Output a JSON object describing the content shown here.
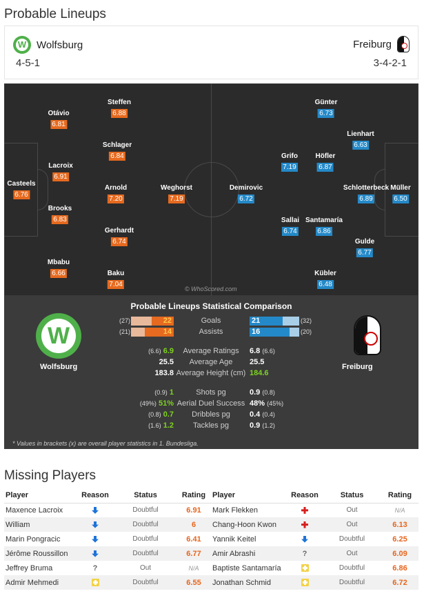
{
  "lineups": {
    "title": "Probable Lineups",
    "home": {
      "name": "Wolfsburg",
      "formation": "4-5-1",
      "logo_glyph": "W"
    },
    "away": {
      "name": "Freiburg",
      "formation": "3-4-2-1"
    },
    "watermark": "© WhoScored.com",
    "home_players": [
      {
        "name": "Casteels",
        "rating": "6.76"
      },
      {
        "name": "Otávio",
        "rating": "6.81"
      },
      {
        "name": "Lacroix",
        "rating": "6.91"
      },
      {
        "name": "Brooks",
        "rating": "6.83"
      },
      {
        "name": "Mbabu",
        "rating": "6.66"
      },
      {
        "name": "Steffen",
        "rating": "6.88"
      },
      {
        "name": "Schlager",
        "rating": "6.84"
      },
      {
        "name": "Arnold",
        "rating": "7.20"
      },
      {
        "name": "Gerhardt",
        "rating": "6.74"
      },
      {
        "name": "Baku",
        "rating": "7.04"
      },
      {
        "name": "Weghorst",
        "rating": "7.19"
      }
    ],
    "away_players": [
      {
        "name": "Demirovic",
        "rating": "6.72"
      },
      {
        "name": "Grifo",
        "rating": "7.19"
      },
      {
        "name": "Sallai",
        "rating": "6.74"
      },
      {
        "name": "Günter",
        "rating": "6.73"
      },
      {
        "name": "Höfler",
        "rating": "6.87"
      },
      {
        "name": "Santamaría",
        "rating": "6.86"
      },
      {
        "name": "Kübler",
        "rating": "6.48"
      },
      {
        "name": "Lienhart",
        "rating": "6.63"
      },
      {
        "name": "Schlotterbeck",
        "rating": "6.89"
      },
      {
        "name": "Gulde",
        "rating": "6.77"
      },
      {
        "name": "Müller",
        "rating": "6.50"
      }
    ]
  },
  "comparison": {
    "title": "Probable Lineups Statistical Comparison",
    "home_label": "Wolfsburg",
    "away_label": "Freiburg",
    "bar_stats": [
      {
        "label": "Goals",
        "home": "22",
        "home_overall": "(27)",
        "away": "21",
        "away_overall": "(32)",
        "home_frac": 0.51,
        "away_frac": 0.66
      },
      {
        "label": "Assists",
        "home": "14",
        "home_overall": "(21)",
        "away": "16",
        "away_overall": "(20)",
        "home_frac": 0.67,
        "away_frac": 0.8
      }
    ],
    "stats": [
      {
        "label": "Average Ratings",
        "home": "6.9",
        "home_overall": "(6.6)",
        "away": "6.8",
        "away_overall": "(6.6)",
        "winner": "home"
      },
      {
        "label": "Average Age",
        "home": "25.5",
        "home_overall": "",
        "away": "25.5",
        "away_overall": "",
        "winner": ""
      },
      {
        "label": "Average Height (cm)",
        "home": "183.8",
        "home_overall": "",
        "away": "184.6",
        "away_overall": "",
        "winner": "away"
      },
      {
        "label": "Shots pg",
        "home": "1",
        "home_overall": "(0.9)",
        "away": "0.9",
        "away_overall": "(0.8)",
        "winner": "home"
      },
      {
        "label": "Aerial Duel Success",
        "home": "51%",
        "home_overall": "(49%)",
        "away": "48%",
        "away_overall": "(45%)",
        "winner": "home"
      },
      {
        "label": "Dribbles pg",
        "home": "0.7",
        "home_overall": "(0.8)",
        "away": "0.4",
        "away_overall": "(0.4)",
        "winner": "home"
      },
      {
        "label": "Tackles pg",
        "home": "1.2",
        "home_overall": "(1.6)",
        "away": "0.9",
        "away_overall": "(1.2)",
        "winner": "home"
      }
    ],
    "footnote": "* Values in brackets (x) are overall player statistics in 1. Bundesliga."
  },
  "missing": {
    "title": "Missing Players",
    "headers": {
      "player": "Player",
      "reason": "Reason",
      "status": "Status",
      "rating": "Rating"
    },
    "rows": [
      {
        "home": {
          "player": "Maxence Lacroix",
          "reason": "injury-icon",
          "status": "Doubtful",
          "rating": "6.91"
        },
        "away": {
          "player": "Mark Flekken",
          "reason": "red-cross-icon",
          "status": "Out",
          "rating": "N/A"
        }
      },
      {
        "home": {
          "player": "William",
          "reason": "injury-icon",
          "status": "Doubtful",
          "rating": "6"
        },
        "away": {
          "player": "Chang-Hoon Kwon",
          "reason": "red-cross-icon",
          "status": "Out",
          "rating": "6.13"
        }
      },
      {
        "home": {
          "player": "Marin Pongracic",
          "reason": "injury-icon",
          "status": "Doubtful",
          "rating": "6.41"
        },
        "away": {
          "player": "Yannik Keitel",
          "reason": "injury-icon",
          "status": "Doubtful",
          "rating": "6.25"
        }
      },
      {
        "home": {
          "player": "Jérôme Roussillon",
          "reason": "injury-icon",
          "status": "Doubtful",
          "rating": "6.77"
        },
        "away": {
          "player": "Amir Abrashi",
          "reason": "question-icon",
          "status": "Out",
          "rating": "6.09"
        }
      },
      {
        "home": {
          "player": "Jeffrey Bruma",
          "reason": "question-icon",
          "status": "Out",
          "rating": "N/A"
        },
        "away": {
          "player": "Baptiste Santamaría",
          "reason": "yellow-cross-icon",
          "status": "Doubtful",
          "rating": "6.86"
        }
      },
      {
        "home": {
          "player": "Admir Mehmedi",
          "reason": "yellow-cross-icon",
          "status": "Doubtful",
          "rating": "6.55"
        },
        "away": {
          "player": "Jonathan Schmid",
          "reason": "yellow-cross-icon",
          "status": "Doubtful",
          "rating": "6.72"
        }
      }
    ]
  }
}
